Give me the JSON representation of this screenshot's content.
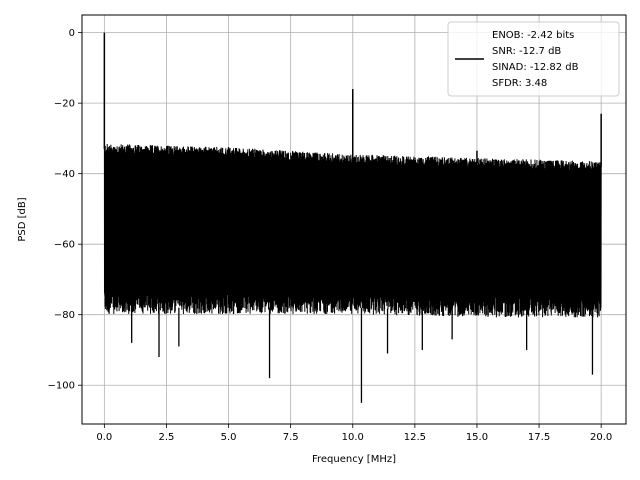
{
  "chart_data": {
    "type": "line",
    "title": "",
    "xlabel": "Frequency [MHz]",
    "ylabel": "PSD [dB]",
    "xlim": [
      -0.9,
      21.0
    ],
    "ylim": [
      -111.0,
      5.0
    ],
    "xticks": [
      0.0,
      2.5,
      5.0,
      7.5,
      10.0,
      12.5,
      15.0,
      17.5,
      20.0
    ],
    "xtick_labels": [
      "0.0",
      "2.5",
      "5.0",
      "7.5",
      "10.0",
      "12.5",
      "15.0",
      "17.5",
      "20.0"
    ],
    "yticks": [
      0,
      -20,
      -40,
      -60,
      -80,
      -100
    ],
    "ytick_labels": [
      "0",
      "−20",
      "−40",
      "−60",
      "−80",
      "−100"
    ],
    "grid": true,
    "legend_position": "top-right",
    "series": [
      {
        "name": "ENOB: -2.42 bits\nSNR: -12.7 dB\nSINAD: -12.82 dB\nSFDR: 3.48",
        "color": "#000000",
        "noise_floor": {
          "x_range": [
            0.0,
            20.0
          ],
          "upper_envelope": [
            [
              0.1,
              -33
            ],
            [
              5.0,
              -34
            ],
            [
              10.0,
              -36
            ],
            [
              15.0,
              -37
            ],
            [
              20.0,
              -38
            ]
          ],
          "lower_envelope": [
            [
              0.1,
              -78
            ],
            [
              5.0,
              -78
            ],
            [
              10.0,
              -78
            ],
            [
              15.0,
              -79
            ],
            [
              20.0,
              -79
            ]
          ]
        },
        "peaks": [
          {
            "x": 0.0,
            "y": 0.0
          },
          {
            "x": 10.0,
            "y": -16.0
          },
          {
            "x": 20.0,
            "y": -23.0
          },
          {
            "x": 15.0,
            "y": -33.5
          },
          {
            "x": 5.0,
            "y": -32.5
          }
        ],
        "dips": [
          {
            "x": 10.35,
            "y": -105.0
          },
          {
            "x": 6.65,
            "y": -98.0
          },
          {
            "x": 19.65,
            "y": -97.0
          },
          {
            "x": 2.2,
            "y": -92.0
          },
          {
            "x": 11.4,
            "y": -91.0
          },
          {
            "x": 12.8,
            "y": -90.0
          },
          {
            "x": 17.0,
            "y": -90.0
          },
          {
            "x": 1.1,
            "y": -88.0
          },
          {
            "x": 14.0,
            "y": -87.0
          },
          {
            "x": 3.0,
            "y": -89.0
          }
        ]
      }
    ]
  },
  "legend": {
    "lines": [
      "ENOB: -2.42 bits",
      "SNR: -12.7 dB",
      "SINAD: -12.82 dB",
      "SFDR: 3.48"
    ]
  }
}
